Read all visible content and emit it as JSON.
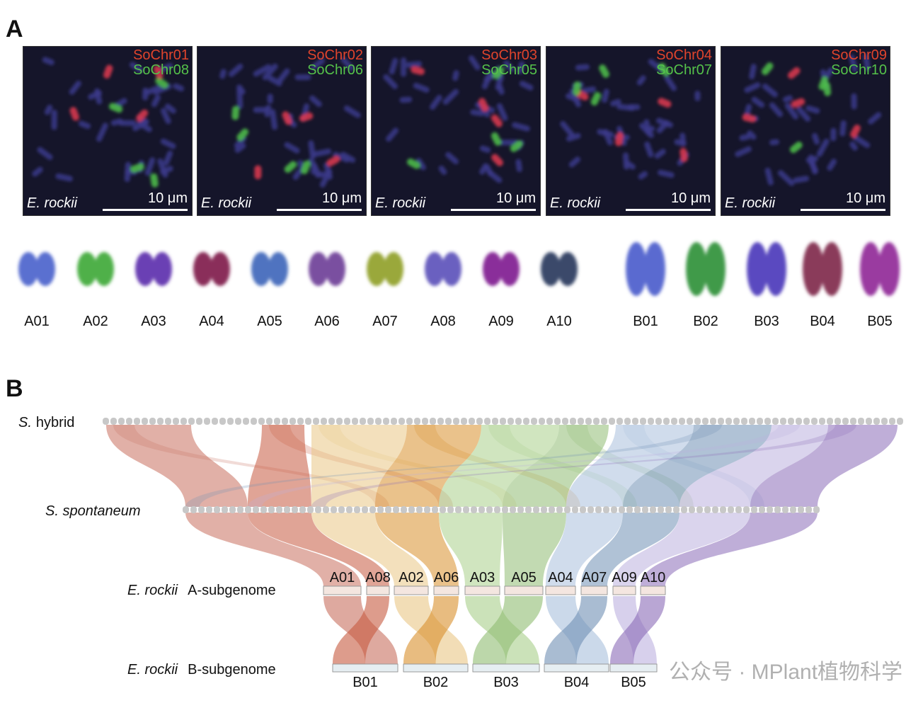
{
  "panel_a": {
    "label": "A",
    "images": [
      {
        "probe_red": "SoChr01",
        "probe_green": "SoChr08",
        "species": "E. rockii",
        "scale": "10 μm"
      },
      {
        "probe_red": "SoChr02",
        "probe_green": "SoChr06",
        "species": "E. rockii",
        "scale": "10 μm"
      },
      {
        "probe_red": "SoChr03",
        "probe_green": "SoChr05",
        "species": "E. rockii",
        "scale": "10 μm"
      },
      {
        "probe_red": "SoChr04",
        "probe_green": "SoChr07",
        "species": "E. rockii",
        "scale": "10 μm"
      },
      {
        "probe_red": "SoChr09",
        "probe_green": "SoChr10",
        "species": "E. rockii",
        "scale": "10 μm"
      }
    ],
    "karyotype": [
      "A01",
      "A02",
      "A03",
      "A04",
      "A05",
      "A06",
      "A07",
      "A08",
      "A09",
      "A10",
      "B01",
      "B02",
      "B03",
      "B04",
      "B05"
    ]
  },
  "panel_b": {
    "label": "B",
    "genomes": [
      {
        "species": "S.",
        "rest": "hybrid"
      },
      {
        "species": "S. spontaneum",
        "rest": ""
      },
      {
        "species": "E. rockii",
        "rest": "A-subgenome"
      },
      {
        "species": "E. rockii",
        "rest": "B-subgenome"
      }
    ],
    "a_chromosomes": [
      "A01",
      "A08",
      "A02",
      "A06",
      "A03",
      "A05",
      "A04",
      "A07",
      "A09",
      "A10"
    ],
    "b_chromosomes": [
      "B01",
      "B02",
      "B03",
      "B04",
      "B05"
    ],
    "colors": [
      "#c8705f",
      "#c65a40",
      "#e9c785",
      "#d9902c",
      "#a9cf8a",
      "#8fbc72",
      "#a9c0dc",
      "#6f8fb4",
      "#bcb1df",
      "#8a6bb8"
    ]
  },
  "watermark": "公众号 · MPlant植物科学",
  "colors": {
    "red_probe": "#e0442c",
    "green_probe": "#55c24a",
    "background": "#15152a"
  }
}
